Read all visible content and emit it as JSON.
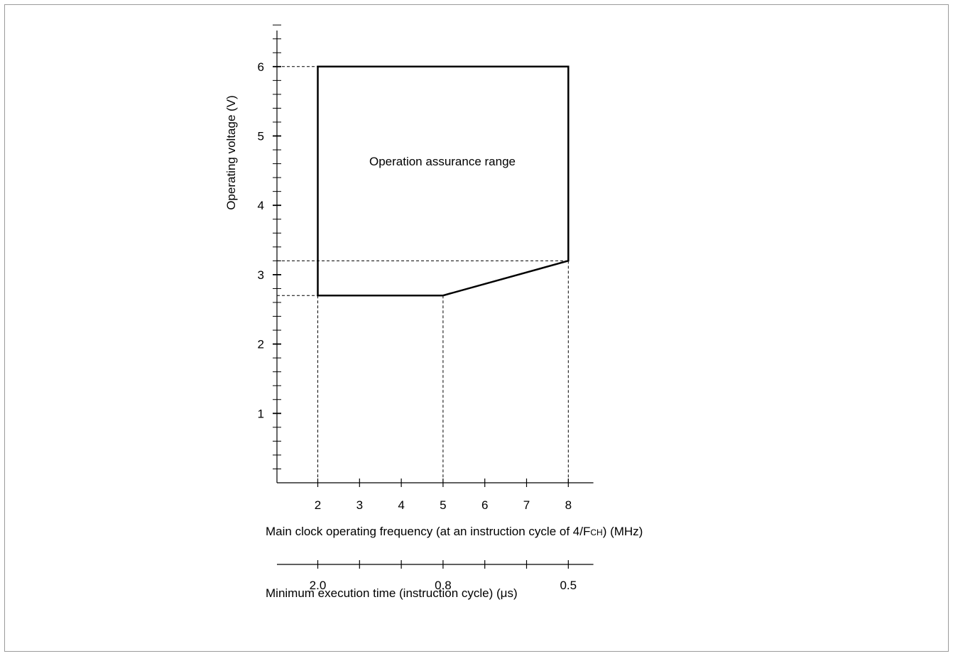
{
  "chart_data": {
    "type": "area",
    "title": "",
    "xlabel": "Main clock operating frequency (at an instruction cycle of 4/FCH) (MHz)",
    "xlabel_parts": {
      "before": "Main clock operating frequency (at an instruction cycle of 4/F",
      "subscript": "CH",
      "after": ") (MHz)"
    },
    "ylabel": "Operating voltage (V)",
    "secondary_xlabel": "Minimum  execution time (instruction cycle) (μs)",
    "xlim": [
      1,
      8.6
    ],
    "ylim": [
      0,
      6.5
    ],
    "x_ticks": [
      2,
      3,
      4,
      5,
      6,
      7,
      8
    ],
    "x_tick_labels": [
      "2",
      "3",
      "4",
      "5",
      "6",
      "7",
      "8"
    ],
    "y_major_ticks": [
      1,
      2,
      3,
      4,
      5,
      6
    ],
    "y_tick_labels": [
      "1",
      "2",
      "3",
      "4",
      "5",
      "6"
    ],
    "y_minor_step": 0.2,
    "secondary_ticks": [
      2,
      3,
      4,
      5,
      6,
      7,
      8
    ],
    "secondary_labels": [
      {
        "x": 2,
        "label": "2.0"
      },
      {
        "x": 5,
        "label": "0.8"
      },
      {
        "x": 8,
        "label": "0.5"
      }
    ],
    "region": {
      "label": "Operation assurance range",
      "polygon": [
        [
          2,
          6.0
        ],
        [
          8,
          6.0
        ],
        [
          8,
          3.2
        ],
        [
          5,
          2.7
        ],
        [
          2,
          2.7
        ]
      ]
    },
    "guides": {
      "horizontal": [
        {
          "y": 6.0,
          "x_to": 2
        },
        {
          "y": 3.2,
          "x_to": 8
        },
        {
          "y": 2.7,
          "x_to": 2
        }
      ],
      "vertical": [
        {
          "x": 2,
          "y_from": 2.7
        },
        {
          "x": 5,
          "y_from": 2.7
        },
        {
          "x": 8,
          "y_from": 3.2
        }
      ]
    },
    "grid": false,
    "legend": "none",
    "line_color": "#000000"
  }
}
